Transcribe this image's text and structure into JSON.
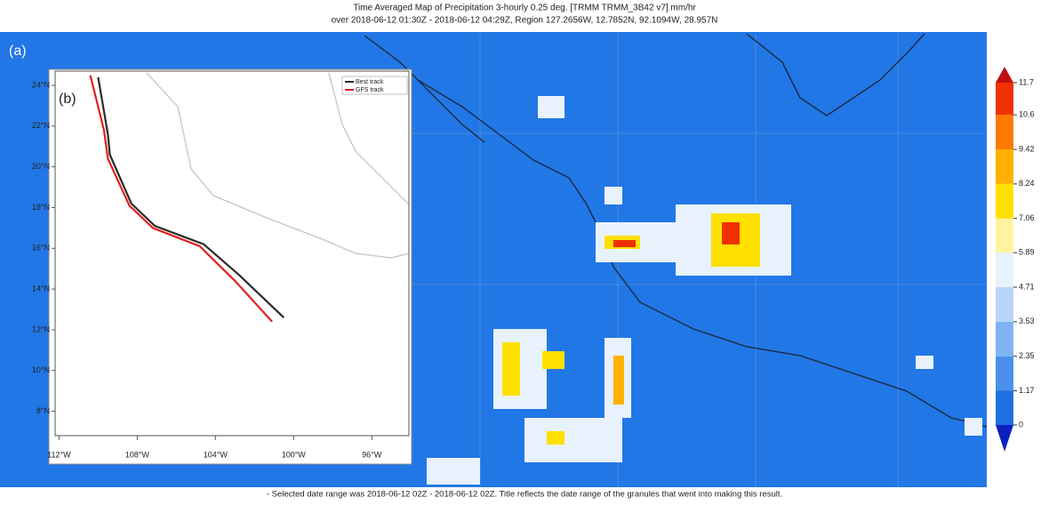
{
  "header": {
    "title_lines": [
      "Time Averaged Map of Precipitation 3-hourly 0.25 deg. [TRMM TRMM_3B42 v7] mm/hr",
      "over 2018-06-12 01:30Z - 2018-06-12 04:29Z, Region 127.2656W, 12.7852N, 92.1094W, 28.957N"
    ]
  },
  "map": {
    "panel_label": "(a)"
  },
  "colorbar": {
    "ticks": [
      0,
      1.17,
      2.35,
      3.53,
      4.71,
      5.89,
      7.06,
      8.24,
      9.42,
      10.6,
      11.7
    ],
    "colors": [
      "#1f6fe0",
      "#4b90ea",
      "#7fb3f2",
      "#b7d6f8",
      "#e8f2fc",
      "#fff3a0",
      "#ffe000",
      "#ffb000",
      "#ff7a00",
      "#f03000"
    ],
    "under_color": "#0a20c0",
    "over_color": "#c01010"
  },
  "inset": {
    "panel_label": "(b)",
    "xlim": [
      -112.2,
      -94.1
    ],
    "ylim": [
      6.8,
      24.7
    ],
    "xticks": [
      {
        "value": -112,
        "label": "112°W"
      },
      {
        "value": -108,
        "label": "108°W"
      },
      {
        "value": -104,
        "label": "104°W"
      },
      {
        "value": -100,
        "label": "100°W"
      },
      {
        "value": -96,
        "label": "96°W"
      }
    ],
    "yticks": [
      {
        "value": 8,
        "label": "8°N"
      },
      {
        "value": 10,
        "label": "10°N"
      },
      {
        "value": 12,
        "label": "12°N"
      },
      {
        "value": 14,
        "label": "14°N"
      },
      {
        "value": 16,
        "label": "16°N"
      },
      {
        "value": 18,
        "label": "18°N"
      },
      {
        "value": 20,
        "label": "20°N"
      },
      {
        "value": 22,
        "label": "22°N"
      },
      {
        "value": 24,
        "label": "24°N"
      }
    ],
    "series": [
      {
        "name": "Best track",
        "color": "#2a2a2a",
        "x": [
          -110.0,
          -109.5,
          -109.4,
          -108.3,
          -107.1,
          -104.6,
          -102.8,
          -100.5
        ],
        "y": [
          24.4,
          21.6,
          20.6,
          18.2,
          17.1,
          16.2,
          14.7,
          12.6
        ]
      },
      {
        "name": "GFS track",
        "color": "#e02020",
        "x": [
          -110.4,
          -109.7,
          -109.5,
          -108.4,
          -107.2,
          -104.8,
          -103.0,
          -101.1
        ],
        "y": [
          24.5,
          21.8,
          20.4,
          18.1,
          17.0,
          16.1,
          14.4,
          12.4
        ]
      }
    ]
  },
  "footer": "- Selected date range was 2018-06-12 02Z - 2018-06-12 02Z. Title reflects the date range of the granules that went into making this result."
}
